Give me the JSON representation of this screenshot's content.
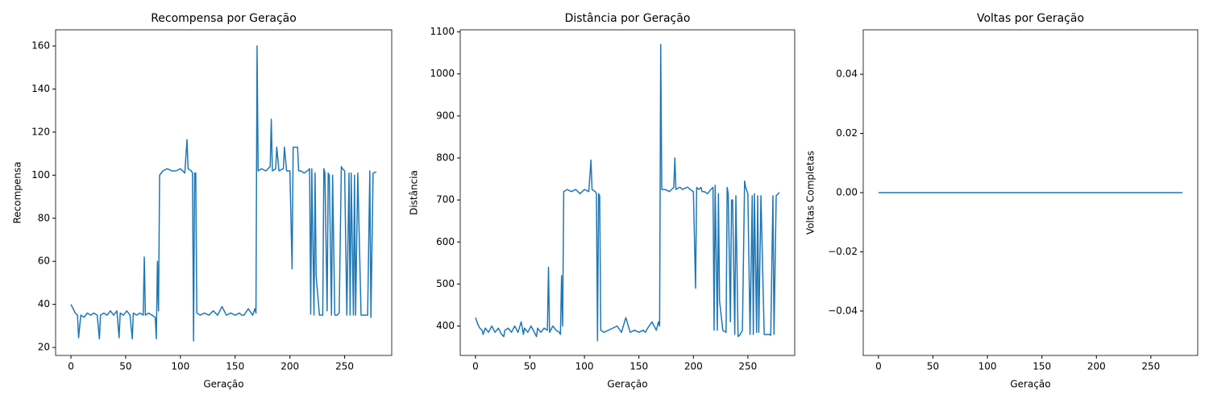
{
  "chart_data": [
    {
      "type": "line",
      "title": "Recompensa por Geração",
      "xlabel": "Geração",
      "ylabel": "Recompensa",
      "x": [
        0,
        2,
        4,
        6,
        7,
        9,
        12,
        15,
        18,
        21,
        24,
        26,
        27,
        30,
        33,
        36,
        39,
        42,
        44,
        45,
        48,
        51,
        54,
        56,
        57,
        60,
        63,
        66,
        67,
        68,
        71,
        74,
        77,
        78,
        79,
        80,
        81,
        84,
        88,
        92,
        96,
        100,
        104,
        106,
        107,
        110,
        111,
        112,
        113,
        114,
        115,
        118,
        122,
        126,
        130,
        134,
        138,
        142,
        146,
        150,
        154,
        156,
        158,
        162,
        166,
        168,
        169,
        170,
        171,
        174,
        178,
        182,
        183,
        184,
        187,
        188,
        190,
        194,
        195,
        197,
        200,
        202,
        203,
        205,
        207,
        208,
        210,
        213,
        216,
        218,
        219,
        220,
        222,
        223,
        224,
        227,
        230,
        231,
        232,
        234,
        235,
        236,
        238,
        239,
        241,
        243,
        245,
        247,
        248,
        250,
        252,
        254,
        255,
        256,
        258,
        259,
        260,
        262,
        265,
        268,
        270,
        271,
        273,
        274,
        276,
        279
      ],
      "series": [
        {
          "name": "Recompensa",
          "color": "#1f77b4",
          "values": [
            40,
            38,
            36,
            35,
            24.5,
            35,
            34,
            36,
            35,
            36,
            35,
            24,
            35,
            36,
            35,
            37,
            35,
            37,
            24.5,
            36,
            35,
            37,
            35,
            24,
            36,
            35,
            36,
            35,
            62,
            35,
            36,
            35,
            34,
            24,
            60,
            37,
            100,
            102,
            103,
            102,
            102,
            103,
            101,
            116.5,
            103,
            102,
            101,
            23,
            101,
            101,
            36,
            35,
            36,
            35,
            37,
            35,
            39,
            35,
            36,
            35,
            36,
            35,
            35,
            38,
            35,
            38,
            36,
            160,
            102,
            103,
            102,
            104,
            126,
            102,
            103,
            113,
            102,
            103,
            113,
            102,
            102,
            56.5,
            113,
            113,
            113,
            102,
            102,
            101,
            102,
            103,
            35.5,
            103,
            35,
            101,
            53,
            35,
            35,
            103,
            101,
            37,
            101,
            100,
            35,
            100,
            35,
            35,
            36,
            104,
            103,
            102,
            35,
            101,
            35,
            101,
            35,
            100,
            35,
            101,
            35,
            35,
            35,
            35,
            102,
            34,
            101,
            101.5
          ]
        }
      ],
      "xlim": [
        -14,
        293
      ],
      "xticks": [
        0,
        50,
        100,
        150,
        200,
        250
      ],
      "ylim": [
        16.3,
        167.5
      ],
      "yticks": [
        20,
        40,
        60,
        80,
        100,
        120,
        140,
        160
      ]
    },
    {
      "type": "line",
      "title": "Distância por Geração",
      "xlabel": "Geração",
      "ylabel": "Distância",
      "x": [
        0,
        2,
        4,
        6,
        7,
        9,
        12,
        15,
        18,
        21,
        24,
        26,
        27,
        30,
        33,
        36,
        39,
        42,
        44,
        45,
        48,
        51,
        54,
        56,
        57,
        60,
        63,
        66,
        67,
        68,
        71,
        74,
        77,
        78,
        79,
        80,
        81,
        84,
        88,
        92,
        96,
        100,
        104,
        106,
        107,
        110,
        111,
        112,
        113,
        114,
        115,
        118,
        122,
        126,
        130,
        134,
        138,
        142,
        146,
        150,
        154,
        156,
        158,
        162,
        166,
        168,
        169,
        170,
        171,
        174,
        178,
        182,
        183,
        184,
        187,
        188,
        190,
        194,
        195,
        197,
        200,
        202,
        203,
        205,
        207,
        208,
        210,
        213,
        216,
        218,
        219,
        220,
        222,
        223,
        224,
        227,
        230,
        231,
        232,
        234,
        235,
        236,
        238,
        239,
        241,
        243,
        245,
        247,
        248,
        250,
        252,
        254,
        255,
        256,
        258,
        259,
        260,
        262,
        265,
        268,
        270,
        271,
        273,
        274,
        276,
        279
      ],
      "series": [
        {
          "name": "Distância",
          "color": "#1f77b4",
          "values": [
            420,
            405,
            395,
            390,
            380,
            395,
            385,
            400,
            385,
            395,
            380,
            375,
            390,
            395,
            385,
            400,
            385,
            410,
            380,
            395,
            385,
            400,
            385,
            375,
            395,
            385,
            395,
            390,
            540,
            385,
            400,
            390,
            385,
            380,
            520,
            400,
            720,
            725,
            720,
            725,
            715,
            725,
            720,
            795,
            725,
            720,
            715,
            365,
            715,
            710,
            390,
            385,
            390,
            395,
            400,
            385,
            420,
            385,
            390,
            385,
            390,
            385,
            395,
            410,
            390,
            410,
            400,
            1070,
            725,
            725,
            720,
            730,
            800,
            725,
            730,
            730,
            725,
            730,
            730,
            725,
            720,
            490,
            730,
            725,
            730,
            720,
            720,
            715,
            725,
            730,
            390,
            735,
            390,
            715,
            460,
            390,
            385,
            730,
            715,
            410,
            700,
            700,
            380,
            710,
            375,
            380,
            390,
            745,
            730,
            715,
            380,
            710,
            380,
            715,
            385,
            710,
            385,
            710,
            380,
            380,
            380,
            378,
            710,
            380,
            710,
            718
          ]
        }
      ],
      "xlim": [
        -14,
        293
      ],
      "xticks": [
        0,
        50,
        100,
        150,
        200,
        250
      ],
      "ylim": [
        330,
        1105
      ],
      "yticks": [
        400,
        500,
        600,
        700,
        800,
        900,
        1000,
        1100
      ]
    },
    {
      "type": "line",
      "title": "Voltas por Geração",
      "xlabel": "Geração",
      "ylabel": "Voltas Completas",
      "x": [
        0,
        279
      ],
      "series": [
        {
          "name": "Voltas Completas",
          "color": "#1f77b4",
          "values": [
            0,
            0
          ]
        }
      ],
      "xlim": [
        -14,
        293
      ],
      "xticks": [
        0,
        50,
        100,
        150,
        200,
        250
      ],
      "ylim": [
        -0.055,
        0.055
      ],
      "yticks": [
        {
          "value": -0.04,
          "label": "−0.04"
        },
        {
          "value": -0.02,
          "label": "−0.02"
        },
        {
          "value": 0,
          "label": "0.00"
        },
        0.02,
        0.04
      ]
    }
  ]
}
